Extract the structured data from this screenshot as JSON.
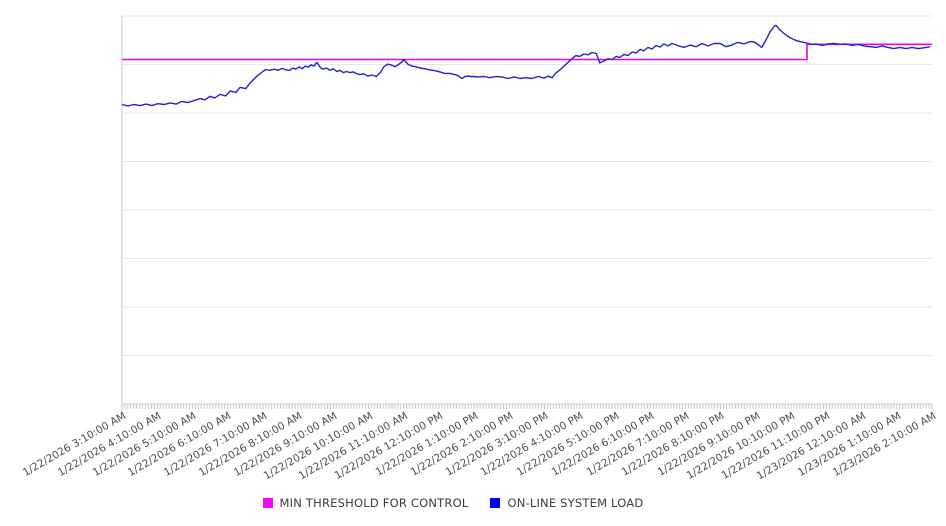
{
  "page": {
    "background": "#ffffff",
    "title": ""
  },
  "colors": {
    "threshold_line": "#ee00ee",
    "load_line": "#2222cc",
    "gridline": "#e7e7e7",
    "axis_line": "#c9c9c9",
    "tick_mark": "#c9c9c9",
    "tick_label": "#4d4d4d",
    "legend_text": "#3d3d3d",
    "legend_swatch_threshold": "#ff00ff",
    "legend_swatch_load": "#0000ff"
  },
  "legend": {
    "position": "bottom",
    "items": [
      {
        "label": "MIN THRESHOLD FOR CONTROL",
        "swatch_color": "#ff00ff"
      },
      {
        "label": "ON-LINE SYSTEM LOAD",
        "swatch_color": "#0000ff"
      }
    ]
  },
  "chart_data": {
    "type": "line",
    "title": "",
    "xlabel": "",
    "ylabel": "",
    "legend_position": "bottom",
    "grid": {
      "horizontal": true,
      "vertical": false
    },
    "x_axis": {
      "unit": "minutes since first tick (1/22/2026 3:10:00 AM)",
      "range_minutes": [
        0,
        1380
      ],
      "hour_tick_interval_minutes": 60,
      "minor_tick_interval_minutes": 5,
      "minor_tick_count": 277,
      "label_rotation_deg": -30,
      "labels": [
        "1/22/2026 3:10:00 AM",
        "1/22/2026 4:10:00 AM",
        "1/22/2026 5:10:00 AM",
        "1/22/2026 6:10:00 AM",
        "1/22/2026 7:10:00 AM",
        "1/22/2026 8:10:00 AM",
        "1/22/2026 9:10:00 AM",
        "1/22/2026 10:10:00 AM",
        "1/22/2026 11:10:00 AM",
        "1/22/2026 12:10:00 PM",
        "1/22/2026 1:10:00 PM",
        "1/22/2026 2:10:00 PM",
        "1/22/2026 3:10:00 PM",
        "1/22/2026 4:10:00 PM",
        "1/22/2026 5:10:00 PM",
        "1/22/2026 6:10:00 PM",
        "1/22/2026 7:10:00 PM",
        "1/22/2026 8:10:00 PM",
        "1/22/2026 9:10:00 PM",
        "1/22/2026 10:10:00 PM",
        "1/22/2026 11:10:00 PM",
        "1/23/2026 12:10:00 AM",
        "1/23/2026 1:10:00 AM",
        "1/23/2026 2:10:00 AM"
      ]
    },
    "y_axis": {
      "tick_labels_visible": false,
      "gridline_divisions": 8,
      "unit": "percent of plot scale (estimated; no y-axis labels shown)",
      "range_pct": [
        0,
        100
      ]
    },
    "series": [
      {
        "name": "MIN THRESHOLD FOR CONTROL",
        "color": "#ee00ee",
        "legend_color": "#ff00ff",
        "shape": "step",
        "points": [
          [
            0,
            88.8
          ],
          [
            1167,
            88.8
          ],
          [
            1167,
            92.7
          ],
          [
            1380,
            92.7
          ]
        ]
      },
      {
        "name": "ON-LINE SYSTEM LOAD",
        "color": "#2222cc",
        "legend_color": "#0000ff",
        "shape": "line",
        "points": [
          [
            0,
            77.2
          ],
          [
            10,
            76.8
          ],
          [
            20,
            77.2
          ],
          [
            31,
            76.9
          ],
          [
            41,
            77.3
          ],
          [
            51,
            76.9
          ],
          [
            61,
            77.4
          ],
          [
            72,
            77.2
          ],
          [
            82,
            77.6
          ],
          [
            92,
            77.3
          ],
          [
            102,
            78.0
          ],
          [
            112,
            77.7
          ],
          [
            123,
            78.2
          ],
          [
            133,
            78.7
          ],
          [
            141,
            78.4
          ],
          [
            150,
            79.3
          ],
          [
            158,
            78.9
          ],
          [
            167,
            79.8
          ],
          [
            177,
            79.4
          ],
          [
            184,
            80.7
          ],
          [
            194,
            80.3
          ],
          [
            201,
            81.6
          ],
          [
            211,
            81.3
          ],
          [
            218,
            82.7
          ],
          [
            225,
            83.8
          ],
          [
            232,
            84.8
          ],
          [
            239,
            85.6
          ],
          [
            245,
            86.2
          ],
          [
            252,
            86.0
          ],
          [
            259,
            86.3
          ],
          [
            266,
            86.0
          ],
          [
            273,
            86.5
          ],
          [
            279,
            86.1
          ],
          [
            286,
            86.0
          ],
          [
            291,
            86.6
          ],
          [
            296,
            86.3
          ],
          [
            302,
            86.9
          ],
          [
            307,
            86.4
          ],
          [
            312,
            87.1
          ],
          [
            317,
            86.8
          ],
          [
            322,
            87.4
          ],
          [
            327,
            87.1
          ],
          [
            332,
            88.1
          ],
          [
            337,
            86.9
          ],
          [
            342,
            86.3
          ],
          [
            349,
            86.6
          ],
          [
            354,
            86.0
          ],
          [
            360,
            86.4
          ],
          [
            366,
            85.7
          ],
          [
            371,
            86.0
          ],
          [
            377,
            85.4
          ],
          [
            383,
            85.7
          ],
          [
            388,
            85.4
          ],
          [
            394,
            85.6
          ],
          [
            400,
            85.1
          ],
          [
            405,
            84.9
          ],
          [
            412,
            85.1
          ],
          [
            419,
            84.5
          ],
          [
            426,
            84.8
          ],
          [
            433,
            84.4
          ],
          [
            440,
            85.4
          ],
          [
            446,
            86.9
          ],
          [
            453,
            87.6
          ],
          [
            460,
            87.3
          ],
          [
            465,
            86.9
          ],
          [
            470,
            87.4
          ],
          [
            477,
            88.2
          ],
          [
            480,
            88.8
          ],
          [
            487,
            87.6
          ],
          [
            494,
            87.1
          ],
          [
            501,
            86.9
          ],
          [
            508,
            86.6
          ],
          [
            516,
            86.4
          ],
          [
            525,
            86.1
          ],
          [
            533,
            85.9
          ],
          [
            542,
            85.6
          ],
          [
            550,
            85.2
          ],
          [
            559,
            85.2
          ],
          [
            567,
            84.9
          ],
          [
            572,
            84.7
          ],
          [
            579,
            83.9
          ],
          [
            586,
            84.5
          ],
          [
            596,
            84.4
          ],
          [
            607,
            84.3
          ],
          [
            617,
            84.4
          ],
          [
            627,
            84.1
          ],
          [
            637,
            84.4
          ],
          [
            647,
            84.3
          ],
          [
            658,
            83.9
          ],
          [
            668,
            84.3
          ],
          [
            678,
            83.9
          ],
          [
            688,
            84.1
          ],
          [
            698,
            83.9
          ],
          [
            709,
            84.4
          ],
          [
            719,
            84.0
          ],
          [
            726,
            84.5
          ],
          [
            733,
            84.1
          ],
          [
            739,
            85.3
          ],
          [
            746,
            86.1
          ],
          [
            753,
            87.1
          ],
          [
            760,
            88.1
          ],
          [
            767,
            89.0
          ],
          [
            773,
            89.8
          ],
          [
            780,
            89.6
          ],
          [
            787,
            90.2
          ],
          [
            794,
            90.0
          ],
          [
            801,
            90.6
          ],
          [
            808,
            90.3
          ],
          [
            814,
            87.9
          ],
          [
            821,
            88.4
          ],
          [
            828,
            89.0
          ],
          [
            835,
            88.8
          ],
          [
            842,
            89.6
          ],
          [
            848,
            89.3
          ],
          [
            855,
            90.1
          ],
          [
            862,
            89.8
          ],
          [
            869,
            90.7
          ],
          [
            876,
            90.5
          ],
          [
            883,
            91.4
          ],
          [
            889,
            91.0
          ],
          [
            896,
            91.9
          ],
          [
            903,
            91.5
          ],
          [
            910,
            92.4
          ],
          [
            917,
            92.0
          ],
          [
            923,
            92.8
          ],
          [
            930,
            92.3
          ],
          [
            937,
            92.9
          ],
          [
            947,
            92.4
          ],
          [
            957,
            91.9
          ],
          [
            968,
            92.5
          ],
          [
            978,
            92.1
          ],
          [
            988,
            92.9
          ],
          [
            998,
            92.3
          ],
          [
            1009,
            92.9
          ],
          [
            1019,
            92.9
          ],
          [
            1029,
            92.1
          ],
          [
            1039,
            92.5
          ],
          [
            1049,
            93.2
          ],
          [
            1060,
            92.8
          ],
          [
            1070,
            93.4
          ],
          [
            1077,
            93.3
          ],
          [
            1083,
            92.7
          ],
          [
            1090,
            91.9
          ],
          [
            1097,
            93.8
          ],
          [
            1104,
            95.9
          ],
          [
            1111,
            97.3
          ],
          [
            1114,
            97.6
          ],
          [
            1121,
            96.4
          ],
          [
            1128,
            95.5
          ],
          [
            1135,
            94.7
          ],
          [
            1141,
            94.2
          ],
          [
            1148,
            93.7
          ],
          [
            1155,
            93.4
          ],
          [
            1162,
            93.2
          ],
          [
            1169,
            92.9
          ],
          [
            1176,
            92.7
          ],
          [
            1182,
            92.8
          ],
          [
            1193,
            92.4
          ],
          [
            1203,
            92.8
          ],
          [
            1213,
            92.9
          ],
          [
            1223,
            92.7
          ],
          [
            1233,
            92.8
          ],
          [
            1244,
            92.4
          ],
          [
            1254,
            92.7
          ],
          [
            1264,
            92.3
          ],
          [
            1274,
            92.1
          ],
          [
            1285,
            91.9
          ],
          [
            1295,
            92.3
          ],
          [
            1305,
            91.9
          ],
          [
            1315,
            91.6
          ],
          [
            1325,
            91.9
          ],
          [
            1336,
            91.6
          ],
          [
            1346,
            91.9
          ],
          [
            1356,
            91.6
          ],
          [
            1366,
            91.8
          ],
          [
            1377,
            92.1
          ]
        ]
      }
    ]
  }
}
